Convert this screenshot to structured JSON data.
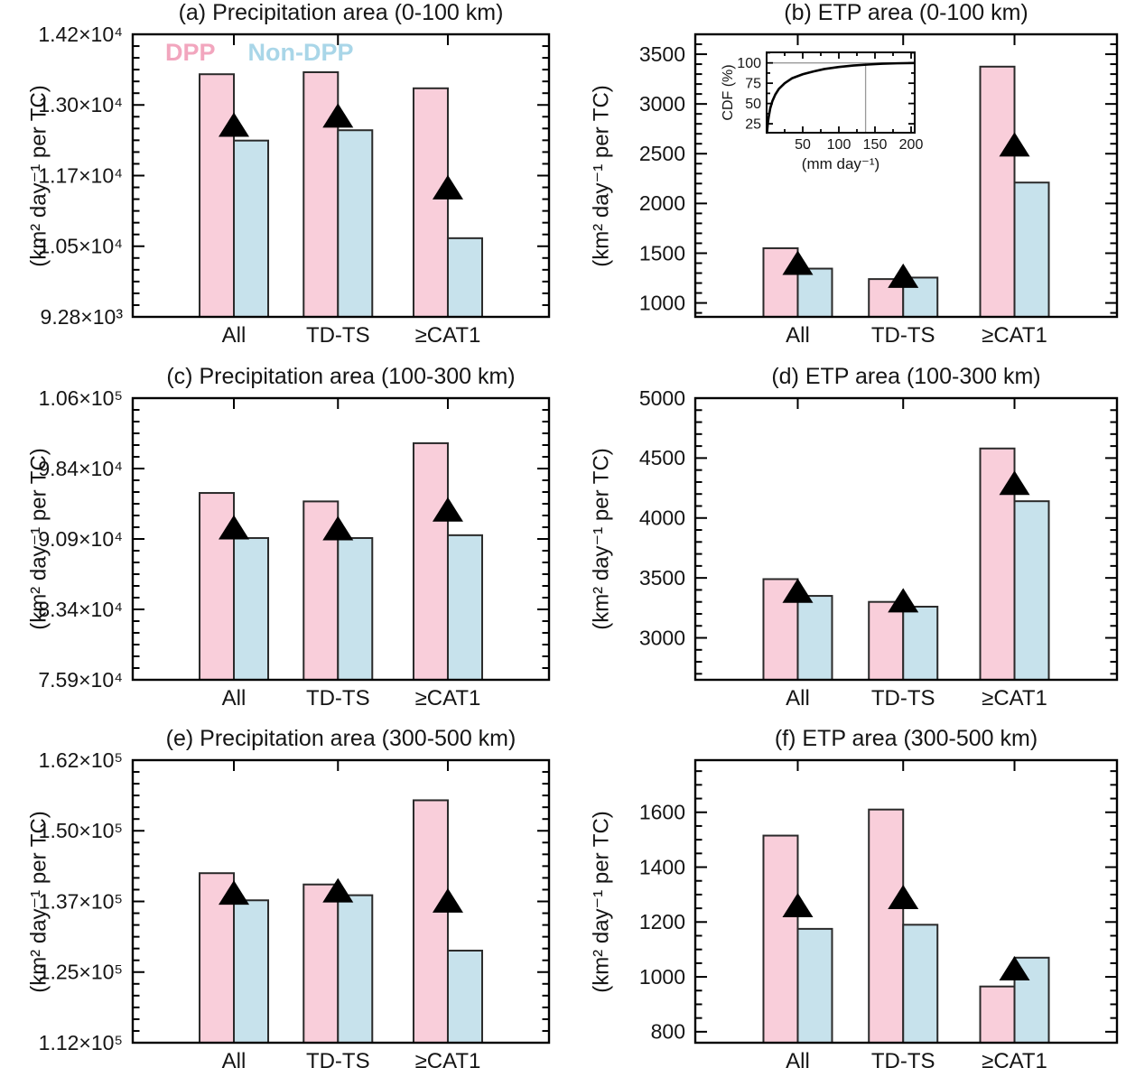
{
  "figure": {
    "legend": {
      "items": [
        {
          "label": "DPP",
          "color": "#F2A6BE"
        },
        {
          "label": "Non-DPP",
          "color": "#A9D6E8"
        }
      ]
    },
    "colors": {
      "dpp_fill": "#F9CEDA",
      "non_dpp_fill": "#C7E2EC",
      "outline": "#2A2A2A",
      "marker": "#000000",
      "axis": "#000000",
      "guide": "#9A9A9A"
    }
  },
  "chart_data": [
    {
      "id": "a",
      "type": "bar",
      "title": "(a) Precipitation area (0-100 km)",
      "ylabel": "(km² day⁻¹ per TC)",
      "categories": [
        "All",
        "TD-TS",
        "≥CAT1"
      ],
      "series": [
        {
          "name": "DPP",
          "values": [
            13505,
            13540,
            13260
          ]
        },
        {
          "name": "Non-DPP",
          "values": [
            12350,
            12530,
            10650
          ]
        }
      ],
      "mean_markers": [
        12620,
        12780,
        11530
      ],
      "ylim": [
        9280,
        14200
      ],
      "major_step": 1230,
      "minor_step": 205,
      "yticks": [
        {
          "v": 9280,
          "label": "9.28×10³"
        },
        {
          "v": 10510,
          "label": "1.05×10⁴"
        },
        {
          "v": 11740,
          "label": "1.17×10⁴"
        },
        {
          "v": 12970,
          "label": "1.30×10⁴"
        },
        {
          "v": 14200,
          "label": "1.42×10⁴"
        }
      ]
    },
    {
      "id": "b",
      "type": "bar",
      "title": "(b) ETP area (0-100 km)",
      "ylabel": "(km² day⁻¹ per TC)",
      "categories": [
        "All",
        "TD-TS",
        "≥CAT1"
      ],
      "series": [
        {
          "name": "DPP",
          "values": [
            1550,
            1240,
            3375
          ]
        },
        {
          "name": "Non-DPP",
          "values": [
            1345,
            1255,
            2210
          ]
        }
      ],
      "mean_markers": [
        1400,
        1270,
        2590
      ],
      "ylim": [
        860,
        3700
      ],
      "major_step": 500,
      "minor_step": 100,
      "yticks": [
        {
          "v": 1000,
          "label": "1000"
        },
        {
          "v": 1500,
          "label": "1500"
        },
        {
          "v": 2000,
          "label": "2000"
        },
        {
          "v": 2500,
          "label": "2500"
        },
        {
          "v": 3000,
          "label": "3000"
        },
        {
          "v": 3500,
          "label": "3500"
        }
      ],
      "inset": {
        "type": "line",
        "ylabel": "CDF (%)",
        "xlabel": "(mm day⁻¹)",
        "xlim": [
          0,
          205
        ],
        "ylim": [
          14,
          113
        ],
        "xticks": [
          50,
          100,
          150,
          200
        ],
        "yticks": [
          25,
          50,
          75,
          100
        ],
        "x_minor": 25,
        "y_minor": 12.5,
        "hline": 100,
        "vline": 137,
        "curve": [
          [
            0.5,
            14
          ],
          [
            1,
            19
          ],
          [
            2,
            28
          ],
          [
            3,
            34
          ],
          [
            5,
            44
          ],
          [
            8,
            53
          ],
          [
            12,
            61
          ],
          [
            17,
            68
          ],
          [
            25,
            75
          ],
          [
            35,
            81
          ],
          [
            50,
            86
          ],
          [
            65,
            89.5
          ],
          [
            80,
            92.5
          ],
          [
            100,
            95
          ],
          [
            120,
            96.8
          ],
          [
            140,
            98
          ],
          [
            160,
            99
          ],
          [
            180,
            99.5
          ],
          [
            204,
            99.9
          ]
        ]
      }
    },
    {
      "id": "c",
      "type": "bar",
      "title": "(c) Precipitation area (100-300 km)",
      "ylabel": "(km² day⁻¹ per TC)",
      "categories": [
        "All",
        "TD-TS",
        "≥CAT1"
      ],
      "series": [
        {
          "name": "DPP",
          "values": [
            95800,
            94900,
            101100
          ]
        },
        {
          "name": "Non-DPP",
          "values": [
            91000,
            91000,
            91300
          ]
        }
      ],
      "mean_markers": [
        92100,
        92000,
        94000
      ],
      "ylim": [
        75900,
        105900
      ],
      "major_step": 7500,
      "minor_step": 1250,
      "yticks": [
        {
          "v": 75900,
          "label": "7.59×10⁴"
        },
        {
          "v": 83400,
          "label": "8.34×10⁴"
        },
        {
          "v": 90900,
          "label": "9.09×10⁴"
        },
        {
          "v": 98400,
          "label": "9.84×10⁴"
        },
        {
          "v": 105900,
          "label": "1.06×10⁵"
        }
      ]
    },
    {
      "id": "d",
      "type": "bar",
      "title": "(d) ETP area (100-300 km)",
      "ylabel": "(km² day⁻¹ per TC)",
      "categories": [
        "All",
        "TD-TS",
        "≥CAT1"
      ],
      "series": [
        {
          "name": "DPP",
          "values": [
            3490,
            3300,
            4580
          ]
        },
        {
          "name": "Non-DPP",
          "values": [
            3350,
            3260,
            4140
          ]
        }
      ],
      "mean_markers": [
        3390,
        3310,
        4290
      ],
      "ylim": [
        2650,
        5000
      ],
      "major_step": 500,
      "minor_step": 100,
      "yticks": [
        {
          "v": 3000,
          "label": "3000"
        },
        {
          "v": 3500,
          "label": "3500"
        },
        {
          "v": 4000,
          "label": "4000"
        },
        {
          "v": 4500,
          "label": "4500"
        },
        {
          "v": 5000,
          "label": "5000"
        }
      ]
    },
    {
      "id": "e",
      "type": "bar",
      "title": "(e) Precipitation area (300-500 km)",
      "ylabel": "(km² day⁻¹ per TC)",
      "categories": [
        "All",
        "TD-TS",
        "≥CAT1"
      ],
      "series": [
        {
          "name": "DPP",
          "values": [
            142000,
            140000,
            154900
          ]
        },
        {
          "name": "Non-DPP",
          "values": [
            137200,
            138100,
            128300
          ]
        }
      ],
      "mean_markers": [
        138500,
        138900,
        137100
      ],
      "ylim": [
        112000,
        162000
      ],
      "major_step": 12500,
      "minor_step": 2083.33,
      "yticks": [
        {
          "v": 112000,
          "label": "1.12×10⁵"
        },
        {
          "v": 124500,
          "label": "1.25×10⁵"
        },
        {
          "v": 137000,
          "label": "1.37×10⁵"
        },
        {
          "v": 149500,
          "label": "1.50×10⁵"
        },
        {
          "v": 162000,
          "label": "1.62×10⁵"
        }
      ]
    },
    {
      "id": "f",
      "type": "bar",
      "title": "(f) ETP area (300-500 km)",
      "ylabel": "(km² day⁻¹ per TC)",
      "categories": [
        "All",
        "TD-TS",
        "≥CAT1"
      ],
      "series": [
        {
          "name": "DPP",
          "values": [
            1515,
            1610,
            965
          ]
        },
        {
          "name": "Non-DPP",
          "values": [
            1175,
            1190,
            1070
          ]
        }
      ],
      "mean_markers": [
        1260,
        1290,
        1030
      ],
      "ylim": [
        760,
        1790
      ],
      "major_step": 200,
      "minor_step": 50,
      "yticks": [
        {
          "v": 800,
          "label": "800"
        },
        {
          "v": 1000,
          "label": "1000"
        },
        {
          "v": 1200,
          "label": "1200"
        },
        {
          "v": 1400,
          "label": "1400"
        },
        {
          "v": 1600,
          "label": "1600"
        }
      ]
    }
  ]
}
